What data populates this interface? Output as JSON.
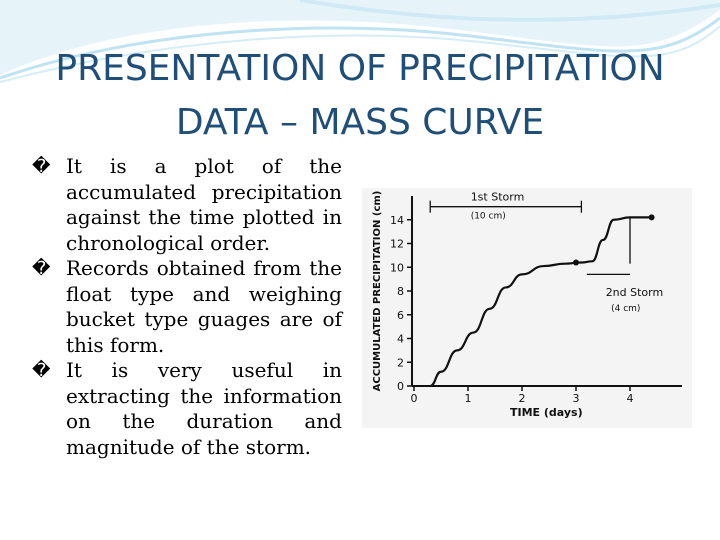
{
  "slide": {
    "title_line1": "PRESENTATION OF PRECIPITATION",
    "title_line2": "DATA – MASS CURVE",
    "bullet_glyph": "�",
    "bullets": [
      "It is a plot of the accumulated precipitation against the time plotted in chronological order.",
      "Records obtained from the float type and weighing bucket type guages are of this form.",
      "It is very useful in extracting the information on the duration and magnitude of the storm."
    ],
    "colors": {
      "title": "#1f4e79",
      "wave": "#bfe3f2"
    }
  },
  "chart_data": {
    "type": "line",
    "xlabel": "TIME (days)",
    "ylabel": "ACCUMULATED PRECIPITATION (cm)",
    "xlim": [
      0,
      5
    ],
    "ylim": [
      0,
      16
    ],
    "xticks": [
      "0",
      "1",
      "2",
      "3",
      "4"
    ],
    "yticks": [
      "0",
      "2",
      "4",
      "6",
      "8",
      "10",
      "12",
      "14"
    ],
    "series": [
      {
        "x": [
          0.3,
          0.5,
          0.8,
          1.1,
          1.4,
          1.7,
          2.0,
          2.4,
          2.8,
          3.1,
          3.3,
          3.5,
          3.7,
          4.0,
          4.4
        ],
        "y": [
          0,
          1.2,
          3.0,
          4.5,
          6.5,
          8.3,
          9.4,
          10.1,
          10.3,
          10.4,
          10.5,
          12.3,
          14.0,
          14.2,
          14.2
        ]
      }
    ],
    "annotations": [
      {
        "text": "1st Storm",
        "subtext": "(10 cm)"
      },
      {
        "text": "2nd Storm",
        "subtext": "(4 cm)"
      }
    ]
  }
}
